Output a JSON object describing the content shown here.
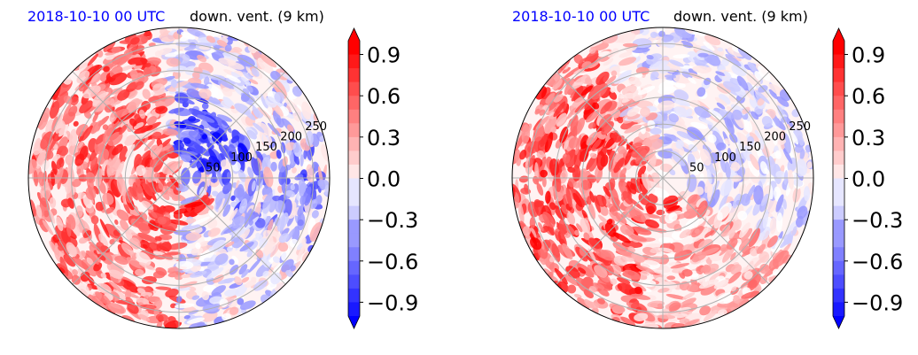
{
  "panels": [
    {
      "date_label": "2018-10-10 00 UTC",
      "title": "down. vent. (9 km)"
    },
    {
      "date_label": "2018-10-10 00 UTC",
      "title": "down. vent. (9 km)"
    }
  ],
  "chart_data": [
    {
      "type": "heatmap",
      "projection": "polar",
      "title": "down. vent. (9 km)",
      "date_label": "2018-10-10 00 UTC",
      "radial_ticks": [
        "50",
        "100",
        "150",
        "200",
        "250"
      ],
      "radial_values": [
        50,
        100,
        150,
        200,
        250
      ],
      "colorbar": {
        "ticks": [
          "0.9",
          "0.6",
          "0.3",
          "0.0",
          "−0.3",
          "−0.6",
          "−0.9"
        ],
        "values": [
          0.9,
          0.6,
          0.3,
          0.0,
          -0.3,
          -0.6,
          -0.9
        ],
        "range": [
          -1.0,
          1.0
        ],
        "extend": "both",
        "colormap": "bwr"
      },
      "grid": true
    },
    {
      "type": "heatmap",
      "projection": "polar",
      "title": "down. vent. (9 km)",
      "date_label": "2018-10-10 00 UTC",
      "radial_ticks": [
        "50",
        "100",
        "150",
        "200",
        "250"
      ],
      "radial_values": [
        50,
        100,
        150,
        200,
        250
      ],
      "colorbar": {
        "ticks": [
          "0.9",
          "0.6",
          "0.3",
          "0.0",
          "−0.3",
          "−0.6",
          "−0.9"
        ],
        "values": [
          0.9,
          0.6,
          0.3,
          0.0,
          -0.3,
          -0.6,
          -0.9
        ],
        "range": [
          -1.0,
          1.0
        ],
        "extend": "both",
        "colormap": "bwr"
      },
      "grid": true
    }
  ],
  "colors": {
    "positive": "#ff0000",
    "negative": "#0000ff",
    "neutral": "#ffffff",
    "date_label": "#0000ff",
    "grid": "#b0b0b0"
  }
}
